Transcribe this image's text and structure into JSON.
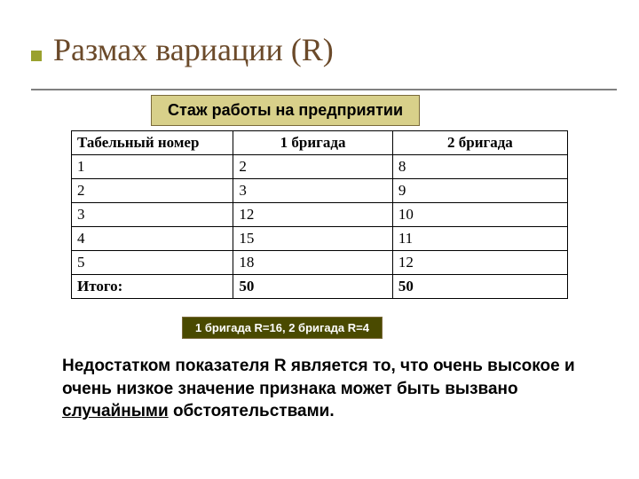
{
  "colors": {
    "title_color": "#6b4a2a",
    "bullet_color": "#9aa12e",
    "caption_bg": "#d8d08a",
    "result_bg": "#4a4a00"
  },
  "title": "Размах вариации (R)",
  "caption": "Стаж работы на предприятии",
  "table": {
    "headers": [
      "Табельный номер",
      "1 бригада",
      "2 бригада"
    ],
    "rows": [
      [
        "1",
        "2",
        "8"
      ],
      [
        "2",
        "3",
        "9"
      ],
      [
        "3",
        "12",
        "10"
      ],
      [
        "4",
        "15",
        "11"
      ],
      [
        "5",
        "18",
        "12"
      ]
    ],
    "footer": [
      "Итого:",
      "50",
      "50"
    ]
  },
  "result": "1 бригада R=16,   2 бригада R=4",
  "paragraph": {
    "before": "Недостатком показателя R является то, что очень высокое и очень низкое значение признака может быть вызвано ",
    "underlined": "случайными",
    "after": " обстоятельствами."
  }
}
